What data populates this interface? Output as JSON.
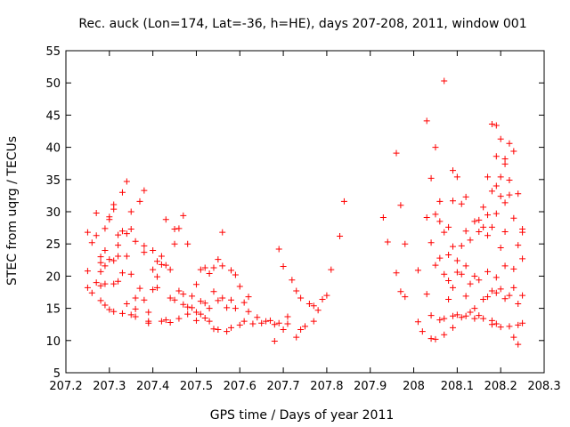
{
  "chart_data": {
    "type": "scatter",
    "title": "Rec. auck (Lon=174, Lat=-36, h=HE), days 207-208, 2011, window 001",
    "xlabel": "GPS time / Days of year 2011",
    "ylabel": "STEC from uqrg / TECUs",
    "xlim": [
      207.2,
      208.3
    ],
    "ylim": [
      5,
      55
    ],
    "xticks": [
      207.2,
      207.3,
      207.4,
      207.5,
      207.6,
      207.7,
      207.8,
      207.9,
      208,
      208.1,
      208.2,
      208.3
    ],
    "xtick_labels": [
      "207.2",
      "207.3",
      "207.4",
      "207.5",
      "207.6",
      "207.7",
      "207.8",
      "207.9",
      "208",
      "208.1",
      "208.2",
      "208.3"
    ],
    "yticks": [
      5,
      10,
      15,
      20,
      25,
      30,
      35,
      40,
      45,
      50,
      55
    ],
    "ytick_labels": [
      "5",
      "10",
      "15",
      "20",
      "25",
      "30",
      "35",
      "40",
      "45",
      "50",
      "55"
    ],
    "grid": false,
    "marker": "+",
    "color": "#ff0000",
    "series": [
      {
        "name": "STEC",
        "points": [
          [
            207.25,
            26.8
          ],
          [
            207.26,
            25.2
          ],
          [
            207.25,
            20.8
          ],
          [
            207.25,
            18.2
          ],
          [
            207.26,
            17.4
          ],
          [
            207.27,
            29.8
          ],
          [
            207.27,
            26.3
          ],
          [
            207.28,
            23.0
          ],
          [
            207.27,
            19.0
          ],
          [
            207.28,
            18.5
          ],
          [
            207.28,
            22.1
          ],
          [
            207.29,
            21.6
          ],
          [
            207.28,
            20.7
          ],
          [
            207.29,
            27.4
          ],
          [
            207.29,
            24.0
          ],
          [
            207.3,
            29.2
          ],
          [
            207.3,
            28.8
          ],
          [
            207.3,
            22.6
          ],
          [
            207.31,
            22.4
          ],
          [
            207.31,
            31.1
          ],
          [
            207.31,
            30.4
          ],
          [
            207.32,
            23.1
          ],
          [
            207.32,
            24.8
          ],
          [
            207.32,
            26.4
          ],
          [
            207.33,
            33.0
          ],
          [
            207.33,
            27.0
          ],
          [
            207.33,
            20.5
          ],
          [
            207.29,
            18.8
          ],
          [
            207.28,
            16.2
          ],
          [
            207.29,
            15.5
          ],
          [
            207.3,
            14.8
          ],
          [
            207.31,
            14.5
          ],
          [
            207.31,
            18.8
          ],
          [
            207.32,
            19.2
          ],
          [
            207.33,
            14.2
          ],
          [
            207.34,
            23.1
          ],
          [
            207.34,
            26.6
          ],
          [
            207.34,
            34.7
          ],
          [
            207.35,
            27.3
          ],
          [
            207.35,
            30.0
          ],
          [
            207.35,
            20.3
          ],
          [
            207.34,
            15.7
          ],
          [
            207.35,
            14.0
          ],
          [
            207.36,
            14.9
          ],
          [
            207.36,
            16.6
          ],
          [
            207.36,
            13.7
          ],
          [
            207.36,
            25.4
          ],
          [
            207.37,
            31.6
          ],
          [
            207.37,
            18.1
          ],
          [
            207.38,
            33.3
          ],
          [
            207.38,
            24.7
          ],
          [
            207.38,
            23.7
          ],
          [
            207.38,
            16.3
          ],
          [
            207.39,
            14.4
          ],
          [
            207.39,
            12.7
          ],
          [
            207.39,
            13.0
          ],
          [
            207.4,
            24.0
          ],
          [
            207.4,
            21.0
          ],
          [
            207.4,
            17.9
          ],
          [
            207.41,
            22.3
          ],
          [
            207.41,
            18.2
          ],
          [
            207.41,
            19.9
          ],
          [
            207.42,
            23.1
          ],
          [
            207.42,
            21.8
          ],
          [
            207.42,
            13.0
          ],
          [
            207.43,
            28.8
          ],
          [
            207.43,
            21.7
          ],
          [
            207.43,
            13.2
          ],
          [
            207.44,
            21.0
          ],
          [
            207.44,
            16.6
          ],
          [
            207.44,
            12.8
          ],
          [
            207.45,
            27.3
          ],
          [
            207.45,
            25.0
          ],
          [
            207.45,
            16.3
          ],
          [
            207.46,
            27.4
          ],
          [
            207.46,
            17.7
          ],
          [
            207.46,
            13.4
          ],
          [
            207.47,
            29.4
          ],
          [
            207.47,
            17.2
          ],
          [
            207.47,
            15.6
          ],
          [
            207.48,
            25.0
          ],
          [
            207.48,
            15.2
          ],
          [
            207.48,
            14.1
          ],
          [
            207.49,
            16.9
          ],
          [
            207.49,
            15.1
          ],
          [
            207.5,
            18.7
          ],
          [
            207.5,
            14.4
          ],
          [
            207.5,
            13.1
          ],
          [
            207.51,
            21.0
          ],
          [
            207.51,
            16.1
          ],
          [
            207.51,
            14.1
          ],
          [
            207.52,
            13.5
          ],
          [
            207.52,
            15.8
          ],
          [
            207.52,
            21.3
          ],
          [
            207.53,
            20.4
          ],
          [
            207.53,
            15.0
          ],
          [
            207.53,
            13.0
          ],
          [
            207.54,
            11.8
          ],
          [
            207.54,
            17.6
          ],
          [
            207.54,
            21.3
          ],
          [
            207.55,
            22.6
          ],
          [
            207.55,
            11.7
          ],
          [
            207.55,
            16.2
          ],
          [
            207.56,
            26.8
          ],
          [
            207.56,
            21.6
          ],
          [
            207.56,
            16.6
          ],
          [
            207.57,
            15.1
          ],
          [
            207.57,
            11.4
          ],
          [
            207.58,
            20.9
          ],
          [
            207.58,
            16.3
          ],
          [
            207.58,
            12.0
          ],
          [
            207.59,
            20.2
          ],
          [
            207.59,
            15.0
          ],
          [
            207.6,
            12.4
          ],
          [
            207.6,
            18.4
          ],
          [
            207.61,
            15.9
          ],
          [
            207.61,
            13.0
          ],
          [
            207.62,
            14.5
          ],
          [
            207.62,
            16.8
          ],
          [
            207.63,
            12.6
          ],
          [
            207.64,
            13.6
          ],
          [
            207.65,
            12.7
          ],
          [
            207.66,
            13.0
          ],
          [
            207.67,
            13.1
          ],
          [
            207.68,
            12.5
          ],
          [
            207.68,
            9.9
          ],
          [
            207.69,
            12.7
          ],
          [
            207.69,
            24.2
          ],
          [
            207.7,
            11.7
          ],
          [
            207.7,
            21.5
          ],
          [
            207.71,
            12.6
          ],
          [
            207.71,
            13.7
          ],
          [
            207.72,
            19.4
          ],
          [
            207.73,
            10.5
          ],
          [
            207.73,
            17.7
          ],
          [
            207.74,
            11.7
          ],
          [
            207.74,
            16.6
          ],
          [
            207.75,
            12.2
          ],
          [
            207.76,
            15.7
          ],
          [
            207.77,
            13.0
          ],
          [
            207.77,
            15.4
          ],
          [
            207.78,
            14.7
          ],
          [
            207.79,
            16.4
          ],
          [
            207.8,
            17.0
          ],
          [
            207.81,
            21.0
          ],
          [
            207.83,
            26.2
          ],
          [
            207.84,
            31.6
          ],
          [
            207.93,
            29.1
          ],
          [
            207.94,
            25.3
          ],
          [
            207.96,
            39.1
          ],
          [
            207.96,
            20.5
          ],
          [
            207.97,
            31.0
          ],
          [
            207.97,
            17.6
          ],
          [
            207.98,
            25.0
          ],
          [
            207.98,
            16.8
          ],
          [
            208.01,
            12.9
          ],
          [
            208.01,
            20.9
          ],
          [
            208.02,
            11.4
          ],
          [
            208.03,
            44.1
          ],
          [
            208.03,
            29.1
          ],
          [
            208.03,
            17.2
          ],
          [
            208.04,
            35.2
          ],
          [
            208.04,
            25.2
          ],
          [
            208.04,
            13.9
          ],
          [
            208.04,
            10.3
          ],
          [
            208.05,
            40.0
          ],
          [
            208.05,
            29.6
          ],
          [
            208.05,
            21.7
          ],
          [
            208.05,
            10.2
          ],
          [
            208.06,
            31.6
          ],
          [
            208.06,
            22.8
          ],
          [
            208.06,
            28.5
          ],
          [
            208.06,
            13.2
          ],
          [
            208.07,
            50.3
          ],
          [
            208.07,
            26.8
          ],
          [
            208.07,
            20.3
          ],
          [
            208.07,
            13.4
          ],
          [
            208.07,
            10.9
          ],
          [
            208.08,
            27.6
          ],
          [
            208.08,
            23.3
          ],
          [
            208.08,
            19.3
          ],
          [
            208.08,
            16.4
          ],
          [
            208.09,
            36.4
          ],
          [
            208.09,
            31.7
          ],
          [
            208.09,
            24.6
          ],
          [
            208.09,
            18.2
          ],
          [
            208.09,
            13.8
          ],
          [
            208.09,
            12.0
          ],
          [
            208.1,
            35.4
          ],
          [
            208.1,
            22.4
          ],
          [
            208.1,
            20.6
          ],
          [
            208.1,
            14.0
          ],
          [
            208.11,
            31.2
          ],
          [
            208.11,
            24.7
          ],
          [
            208.11,
            20.3
          ],
          [
            208.11,
            13.6
          ],
          [
            208.12,
            32.3
          ],
          [
            208.12,
            27.0
          ],
          [
            208.12,
            21.6
          ],
          [
            208.12,
            16.9
          ],
          [
            208.12,
            13.8
          ],
          [
            208.13,
            25.6
          ],
          [
            208.13,
            18.8
          ],
          [
            208.13,
            14.4
          ],
          [
            208.14,
            28.5
          ],
          [
            208.14,
            20.0
          ],
          [
            208.14,
            15.0
          ],
          [
            208.14,
            13.4
          ],
          [
            208.15,
            28.7
          ],
          [
            208.15,
            26.9
          ],
          [
            208.15,
            19.4
          ],
          [
            208.15,
            13.9
          ],
          [
            208.16,
            30.7
          ],
          [
            208.16,
            27.6
          ],
          [
            208.16,
            16.4
          ],
          [
            208.16,
            13.4
          ],
          [
            208.17,
            35.4
          ],
          [
            208.17,
            29.5
          ],
          [
            208.17,
            26.3
          ],
          [
            208.17,
            20.7
          ],
          [
            208.17,
            16.8
          ],
          [
            208.18,
            43.6
          ],
          [
            208.18,
            33.2
          ],
          [
            208.18,
            27.6
          ],
          [
            208.18,
            17.7
          ],
          [
            208.18,
            13.1
          ],
          [
            208.18,
            12.5
          ],
          [
            208.19,
            43.4
          ],
          [
            208.19,
            38.6
          ],
          [
            208.19,
            34.0
          ],
          [
            208.19,
            29.7
          ],
          [
            208.19,
            19.8
          ],
          [
            208.19,
            17.4
          ],
          [
            208.19,
            12.6
          ],
          [
            208.2,
            41.3
          ],
          [
            208.2,
            35.4
          ],
          [
            208.2,
            32.4
          ],
          [
            208.2,
            24.4
          ],
          [
            208.2,
            18.0
          ],
          [
            208.2,
            12.1
          ],
          [
            208.21,
            38.2
          ],
          [
            208.21,
            37.4
          ],
          [
            208.21,
            31.4
          ],
          [
            208.21,
            26.9
          ],
          [
            208.21,
            21.6
          ],
          [
            208.21,
            16.5
          ],
          [
            208.22,
            40.6
          ],
          [
            208.22,
            34.9
          ],
          [
            208.22,
            32.6
          ],
          [
            208.22,
            17.0
          ],
          [
            208.22,
            12.2
          ],
          [
            208.23,
            39.4
          ],
          [
            208.23,
            29.0
          ],
          [
            208.23,
            21.1
          ],
          [
            208.23,
            18.2
          ],
          [
            208.23,
            10.5
          ],
          [
            208.24,
            32.8
          ],
          [
            208.24,
            24.8
          ],
          [
            208.24,
            15.7
          ],
          [
            208.24,
            12.4
          ],
          [
            208.24,
            9.4
          ],
          [
            208.25,
            27.3
          ],
          [
            208.25,
            22.7
          ],
          [
            208.25,
            26.8
          ],
          [
            208.25,
            17.0
          ],
          [
            208.25,
            12.7
          ]
        ]
      }
    ]
  }
}
